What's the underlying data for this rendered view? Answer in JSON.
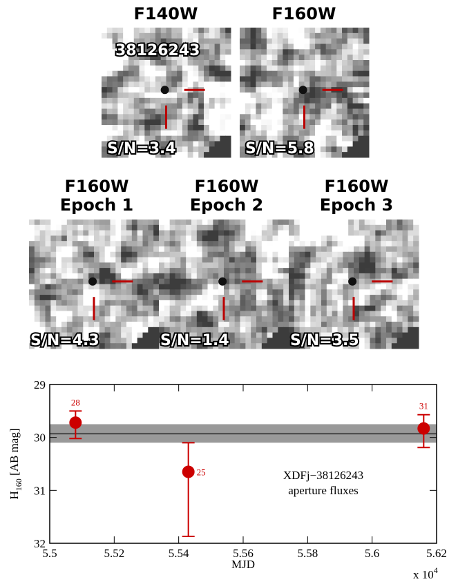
{
  "panels": {
    "top_row": [
      {
        "title": "F140W",
        "label": "38126243",
        "sn": "S/N=3.4"
      },
      {
        "title": "F160W",
        "sn": "S/N=5.8"
      }
    ],
    "bottom_row": [
      {
        "title": "F160W",
        "epoch": "Epoch 1",
        "sn": "S/N=4.3"
      },
      {
        "title": "F160W",
        "epoch": "Epoch 2",
        "sn": "S/N=1.4"
      },
      {
        "title": "F160W",
        "epoch": "Epoch 3",
        "sn": "S/N=3.5"
      }
    ]
  },
  "chart_data": {
    "type": "errorbar",
    "ylabel": "H",
    "ylabel_sub": "160",
    "ylabel_rest": " [AB mag]",
    "xlabel": "MJD",
    "x_multiplier": "x 10",
    "x_multiplier_exp": "4",
    "annotation": [
      "XDFj−38126243",
      "aperture fluxes"
    ],
    "x": [
      5.508,
      5.543,
      5.616
    ],
    "values": [
      29.72,
      30.65,
      29.83
    ],
    "errors_minus": [
      0.22,
      0.55,
      0.26
    ],
    "errors_plus": [
      0.3,
      1.22,
      0.36
    ],
    "point_labels": [
      "28",
      "25",
      "31"
    ],
    "color": "#cc0000",
    "mean_line": 29.93,
    "band": [
      29.75,
      30.1
    ],
    "xlim": [
      5.5,
      5.62
    ],
    "xticks": [
      5.5,
      5.52,
      5.54,
      5.56,
      5.58,
      5.6,
      5.62
    ],
    "ylim": [
      29,
      32
    ],
    "yticks": [
      29,
      30,
      31,
      32
    ],
    "y_inverted": true
  }
}
